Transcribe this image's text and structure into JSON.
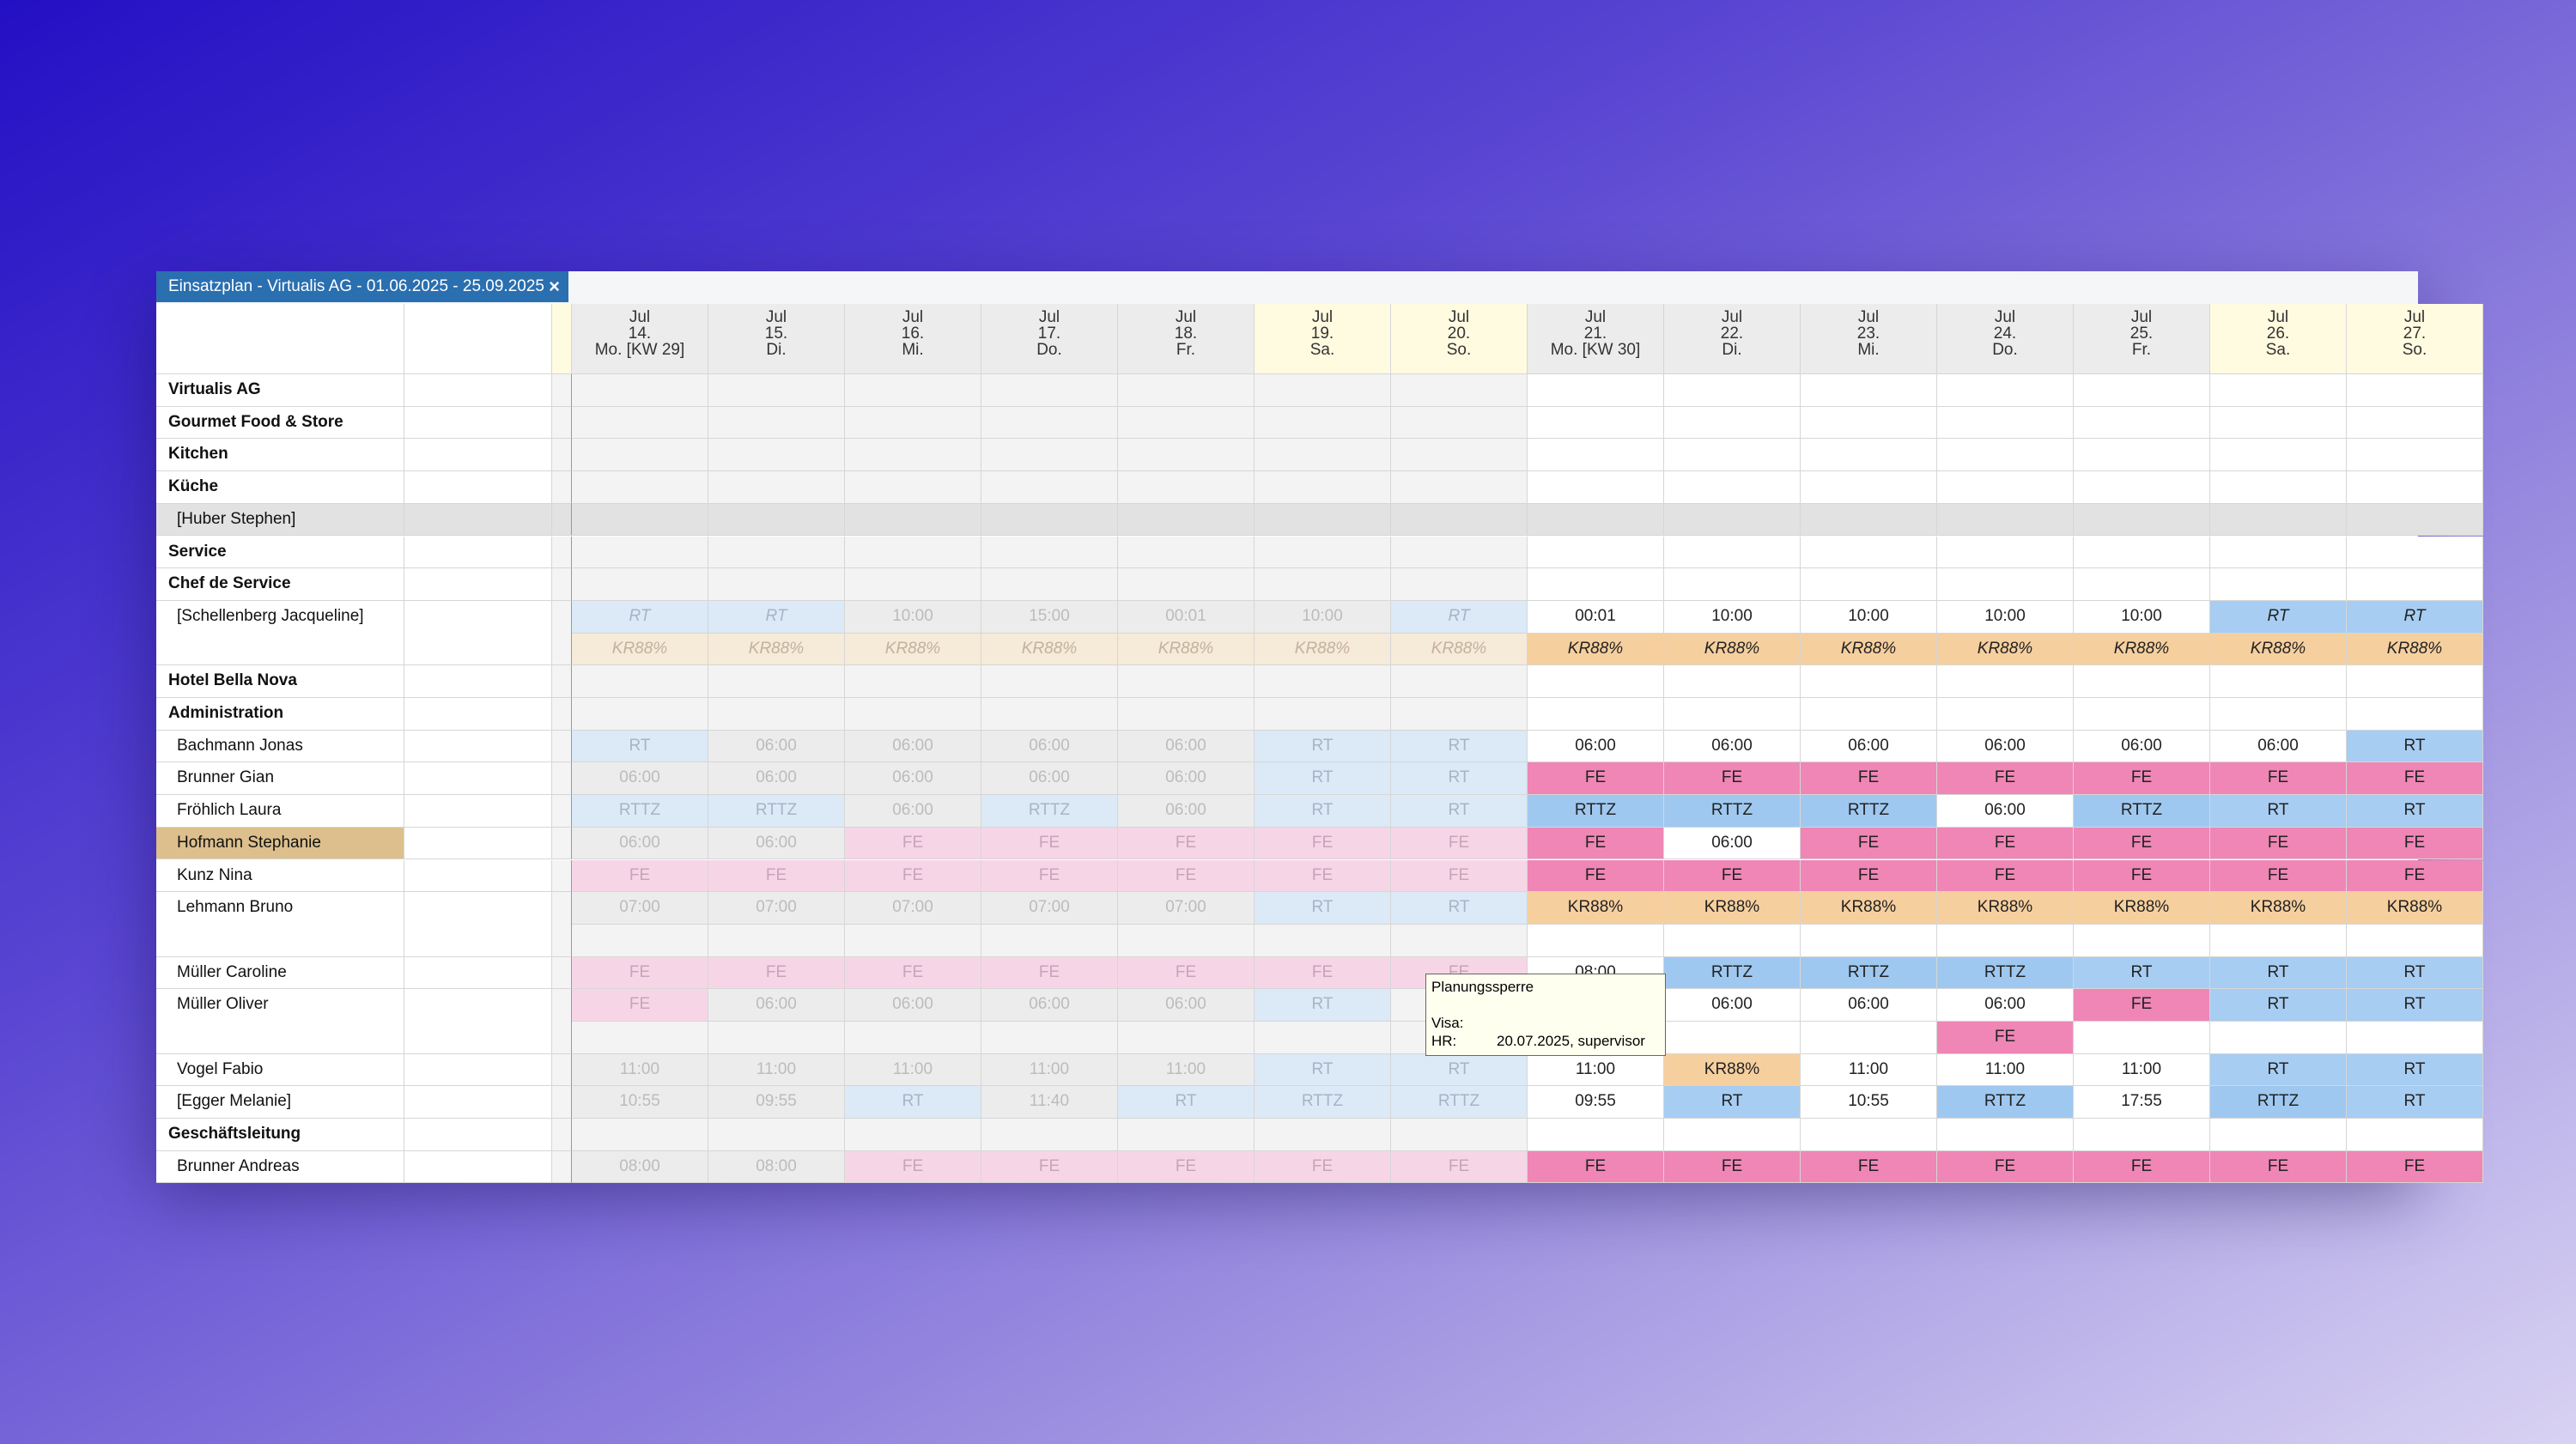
{
  "tab": {
    "title": "Einsatzplan - Virtualis AG - 01.06.2025 - 25.09.2025",
    "close": "×"
  },
  "days": [
    {
      "month": "Jul",
      "day": "14.",
      "weekday": "Mo. [KW 29]"
    },
    {
      "month": "Jul",
      "day": "15.",
      "weekday": "Di."
    },
    {
      "month": "Jul",
      "day": "16.",
      "weekday": "Mi."
    },
    {
      "month": "Jul",
      "day": "17.",
      "weekday": "Do."
    },
    {
      "month": "Jul",
      "day": "18.",
      "weekday": "Fr."
    },
    {
      "month": "Jul",
      "day": "19.",
      "weekday": "Sa."
    },
    {
      "month": "Jul",
      "day": "20.",
      "weekday": "So."
    },
    {
      "month": "Jul",
      "day": "21.",
      "weekday": "Mo. [KW 30]"
    },
    {
      "month": "Jul",
      "day": "22.",
      "weekday": "Di."
    },
    {
      "month": "Jul",
      "day": "23.",
      "weekday": "Mi."
    },
    {
      "month": "Jul",
      "day": "24.",
      "weekday": "Do."
    },
    {
      "month": "Jul",
      "day": "25.",
      "weekday": "Fr."
    },
    {
      "month": "Jul",
      "day": "26.",
      "weekday": "Sa."
    },
    {
      "month": "Jul",
      "day": "27.",
      "weekday": "So."
    }
  ],
  "rows": [
    {
      "name": "Virtualis AG"
    },
    {
      "name": "Gourmet Food & Store"
    },
    {
      "name": "Kitchen"
    },
    {
      "name": "Küche"
    },
    {
      "name": "[Huber Stephen]",
      "cells": []
    },
    {
      "name": "Service"
    },
    {
      "name": "Chef de Service"
    },
    {
      "name": "[Schellenberg Jacqueline]",
      "cells": [
        [
          "RT",
          "RT",
          "10:00",
          "15:00",
          "00:01",
          "10:00",
          "RT",
          "00:01",
          "10:00",
          "10:00",
          "10:00",
          "10:00",
          "RT",
          "RT"
        ],
        [
          "KR88%",
          "KR88%",
          "KR88%",
          "KR88%",
          "KR88%",
          "KR88%",
          "KR88%",
          "KR88%",
          "KR88%",
          "KR88%",
          "KR88%",
          "KR88%",
          "KR88%",
          "KR88%"
        ]
      ]
    },
    {
      "name": "Hotel Bella Nova"
    },
    {
      "name": "Administration"
    },
    {
      "name": "Bachmann Jonas",
      "cells": [
        [
          "RT",
          "06:00",
          "06:00",
          "06:00",
          "06:00",
          "RT",
          "RT",
          "06:00",
          "06:00",
          "06:00",
          "06:00",
          "06:00",
          "06:00",
          "RT"
        ]
      ]
    },
    {
      "name": "Brunner Gian",
      "cells": [
        [
          "06:00",
          "06:00",
          "06:00",
          "06:00",
          "06:00",
          "RT",
          "RT",
          "FE",
          "FE",
          "FE",
          "FE",
          "FE",
          "FE",
          "FE"
        ]
      ]
    },
    {
      "name": "Fröhlich Laura",
      "cells": [
        [
          "RTTZ",
          "RTTZ",
          "06:00",
          "RTTZ",
          "06:00",
          "RT",
          "RT",
          "RTTZ",
          "RTTZ",
          "RTTZ",
          "06:00",
          "RTTZ",
          "RT",
          "RT"
        ]
      ]
    },
    {
      "name": "Hofmann Stephanie",
      "name_color": "#dcbf8c",
      "cells": [
        [
          "06:00",
          "06:00",
          "FE",
          "FE",
          "FE",
          "FE",
          "FE",
          "FE",
          "06:00",
          "FE",
          "FE",
          "FE",
          "FE",
          "FE"
        ]
      ]
    },
    {
      "name": "Kunz Nina",
      "cells": [
        [
          "FE",
          "FE",
          "FE",
          "FE",
          "FE",
          "FE",
          "FE",
          "FE",
          "FE",
          "FE",
          "FE",
          "FE",
          "FE",
          "FE"
        ]
      ]
    },
    {
      "name": "Lehmann Bruno",
      "cells": [
        [
          "07:00",
          "07:00",
          "07:00",
          "07:00",
          "07:00",
          "RT",
          "RT",
          "KR88%",
          "KR88%",
          "KR88%",
          "KR88%",
          "KR88%",
          "KR88%",
          "KR88%"
        ],
        [
          null,
          null,
          null,
          null,
          null,
          null,
          null,
          null,
          null,
          null,
          null,
          null,
          null,
          null
        ]
      ]
    },
    {
      "name": "Müller Caroline",
      "cells": [
        [
          "FE",
          "FE",
          "FE",
          "FE",
          "FE",
          "FE",
          "FE",
          "08:00",
          "RTTZ",
          "RTTZ",
          "RTTZ",
          "RT",
          "RT",
          "RT"
        ]
      ]
    },
    {
      "name": "Müller Oliver",
      "cells": [
        [
          "FE",
          "06:00",
          "06:00",
          "06:00",
          "06:00",
          "RT",
          null,
          null,
          "06:00",
          "06:00",
          "06:00",
          "FE",
          "RT",
          "RT"
        ],
        [
          null,
          null,
          null,
          null,
          null,
          null,
          null,
          null,
          null,
          null,
          "FE",
          null,
          null,
          null
        ]
      ]
    },
    {
      "name": "Vogel Fabio",
      "cells": [
        [
          "11:00",
          "11:00",
          "11:00",
          "11:00",
          "11:00",
          "RT",
          "RT",
          "11:00",
          "KR88%",
          "11:00",
          "11:00",
          "11:00",
          "RT",
          "RT"
        ]
      ]
    },
    {
      "name": "[Egger Melanie]",
      "cells": [
        [
          "10:55",
          "09:55",
          "RT",
          "11:40",
          "RT",
          "RTTZ",
          "RTTZ",
          "09:55",
          "RT",
          "10:55",
          "RTTZ",
          "17:55",
          "RTTZ",
          "RT"
        ]
      ]
    },
    {
      "name": "Geschäftsleitung"
    },
    {
      "name": "Brunner Andreas",
      "cells": [
        [
          "08:00",
          "08:00",
          "FE",
          "FE",
          "FE",
          "FE",
          "FE",
          "FE",
          "FE",
          "FE",
          "FE",
          "FE",
          "FE",
          "FE"
        ]
      ]
    }
  ],
  "tooltip": {
    "title": "Planungssperre",
    "visa": "Visa:",
    "hr_label": "HR:",
    "hr_value": "20.07.2025, supervisor"
  }
}
